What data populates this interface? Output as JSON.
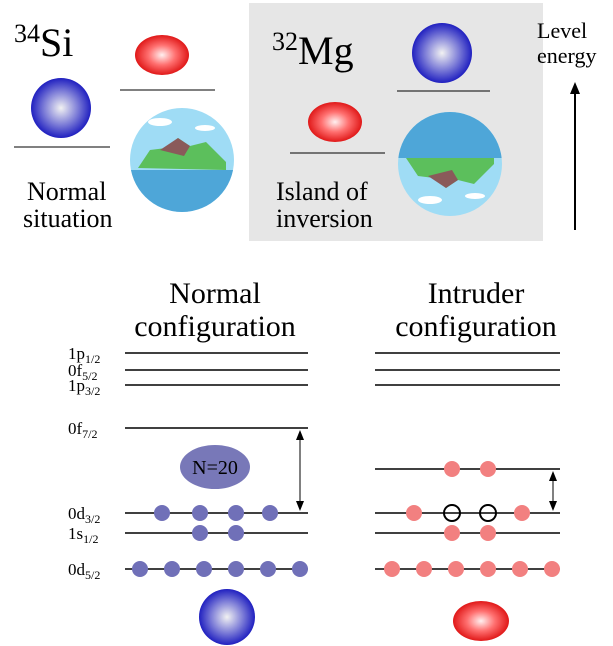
{
  "panels": {
    "left": {
      "mass": "34",
      "element": "Si",
      "caption": [
        "Normal",
        "situation"
      ]
    },
    "right": {
      "mass": "32",
      "element": "Mg",
      "caption": [
        "Island of",
        "inversion"
      ]
    }
  },
  "axis_label": [
    "Level",
    "energy"
  ],
  "configurations": {
    "normal": [
      "Normal",
      "configuration"
    ],
    "intruder": [
      "Intruder",
      "configuration"
    ]
  },
  "levels": [
    {
      "name": "1p",
      "sub": "1/2"
    },
    {
      "name": "0f",
      "sub": "5/2"
    },
    {
      "name": "1p",
      "sub": "3/2"
    },
    {
      "name": "0f",
      "sub": "7/2"
    },
    {
      "name": "0d",
      "sub": "3/2"
    },
    {
      "name": "1s",
      "sub": "1/2"
    },
    {
      "name": "0d",
      "sub": "5/2"
    }
  ],
  "gap_label": "N=20"
}
